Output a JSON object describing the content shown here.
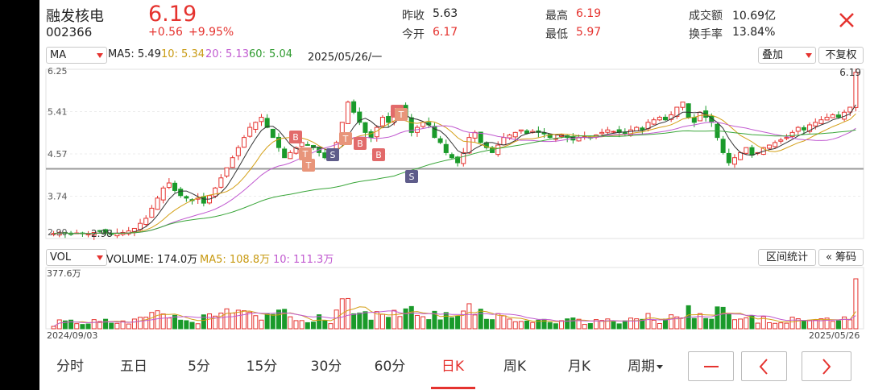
{
  "header": {
    "stock_name": "融发核电",
    "stock_code": "002366",
    "price": "6.19",
    "change": "+0.56",
    "change_pct": "+9.95%",
    "stats": [
      {
        "label": "昨收",
        "value": "5.63"
      },
      {
        "label": "今开",
        "value": "6.17"
      },
      {
        "label": "最高",
        "value": "6.19"
      },
      {
        "label": "最低",
        "value": "5.97"
      },
      {
        "label": "成交额",
        "value": "10.69亿"
      },
      {
        "label": "换手率",
        "value": "13.84%"
      }
    ]
  },
  "indicator_bar": {
    "selector": "MA",
    "ma5": "MA5: 5.49",
    "ma10": "10: 5.34",
    "ma20": "20: 5.13",
    "ma60": "60: 5.04",
    "date": "2025/05/26/一",
    "overlay_button": "叠加",
    "adjust_button": "不复权"
  },
  "volume_bar": {
    "selector": "VOL",
    "volume": "VOLUME: 174.0万",
    "ma5": "MA5: 108.8万",
    "ma10": "10: 111.3万",
    "range_stats_button": "区间统计",
    "chips_button": "« 筹码"
  },
  "price_axis": [
    "6.25",
    "5.41",
    "4.57",
    "3.74",
    "2.90"
  ],
  "price_annotations": {
    "high": "6.19",
    "low": "2.98"
  },
  "vol_axis": "377.6万",
  "date_range": {
    "start": "2024/09/03",
    "end": "2025/05/26"
  },
  "tabs": [
    "分时",
    "五日",
    "5分",
    "15分",
    "30分",
    "60分",
    "日K",
    "周K",
    "月K",
    "周期"
  ],
  "active_tab": "日K",
  "colors": {
    "up": "#e5332f",
    "down": "#1a9a2a",
    "ma5": "#333333",
    "ma10": "#d4a017",
    "ma20": "#c15ad0",
    "ma60": "#3aa63a",
    "signal_buy": "#e26a6a",
    "signal_sell": "#5e5c8a",
    "signal_t": "#e8957a"
  },
  "chart_data": {
    "type": "candlestick",
    "ylim": [
      2.9,
      6.25
    ],
    "price_labels": [
      "6.25",
      "5.41",
      "4.57",
      "3.74",
      "2.90"
    ],
    "last_close": 6.19,
    "support_line": 4.28,
    "signals": [
      {
        "label": "B",
        "date": "2024/11"
      },
      {
        "label": "T",
        "date": "2024/11"
      },
      {
        "label": "T",
        "date": "2024/11"
      },
      {
        "label": "S",
        "date": "2024/12"
      },
      {
        "label": "T",
        "date": "2024/12"
      },
      {
        "label": "B",
        "date": "2024/12"
      },
      {
        "label": "B",
        "date": "2024/12"
      },
      {
        "label": "B",
        "date": "2025/01"
      },
      {
        "label": "T",
        "date": "2025/01"
      },
      {
        "label": "S",
        "date": "2025/01"
      }
    ],
    "closes": [
      3.0,
      3.02,
      3.0,
      2.98,
      3.01,
      3.0,
      2.99,
      3.02,
      3.04,
      3.0,
      2.98,
      3.0,
      3.02,
      3.05,
      3.1,
      3.2,
      3.3,
      3.5,
      3.7,
      3.9,
      4.0,
      3.85,
      3.75,
      3.7,
      3.65,
      3.7,
      3.6,
      3.75,
      3.9,
      4.1,
      4.3,
      4.5,
      4.7,
      4.9,
      5.1,
      5.2,
      5.3,
      5.1,
      4.9,
      4.7,
      4.5,
      4.6,
      4.7,
      4.8,
      4.75,
      4.7,
      4.6,
      4.5,
      4.55,
      4.8,
      5.2,
      5.6,
      5.4,
      5.2,
      5.0,
      4.9,
      5.1,
      5.3,
      5.2,
      5.4,
      5.5,
      5.3,
      5.0,
      5.1,
      5.2,
      5.15,
      4.9,
      4.8,
      4.6,
      4.5,
      4.4,
      4.6,
      4.9,
      5.0,
      4.8,
      4.7,
      4.6,
      4.75,
      4.9,
      4.95,
      5.0,
      5.05,
      4.98,
      5.02,
      5.0,
      4.97,
      4.9,
      4.88,
      4.95,
      4.9,
      4.85,
      4.9,
      4.92,
      4.9,
      4.95,
      5.0,
      5.05,
      5.02,
      5.0,
      4.98,
      5.05,
      5.1,
      5.05,
      5.2,
      5.25,
      5.3,
      5.25,
      5.35,
      5.5,
      5.6,
      5.3,
      5.2,
      5.4,
      5.3,
      5.2,
      4.9,
      4.6,
      4.4,
      4.5,
      4.6,
      4.7,
      4.55,
      4.6,
      4.7,
      4.75,
      4.8,
      4.85,
      4.9,
      5.0,
      5.1,
      5.05,
      5.15,
      5.2,
      5.25,
      5.3,
      5.35,
      5.3,
      5.4,
      5.5,
      6.19
    ],
    "volume_axis_max": "377.6万",
    "volume_last": "174.0万"
  }
}
